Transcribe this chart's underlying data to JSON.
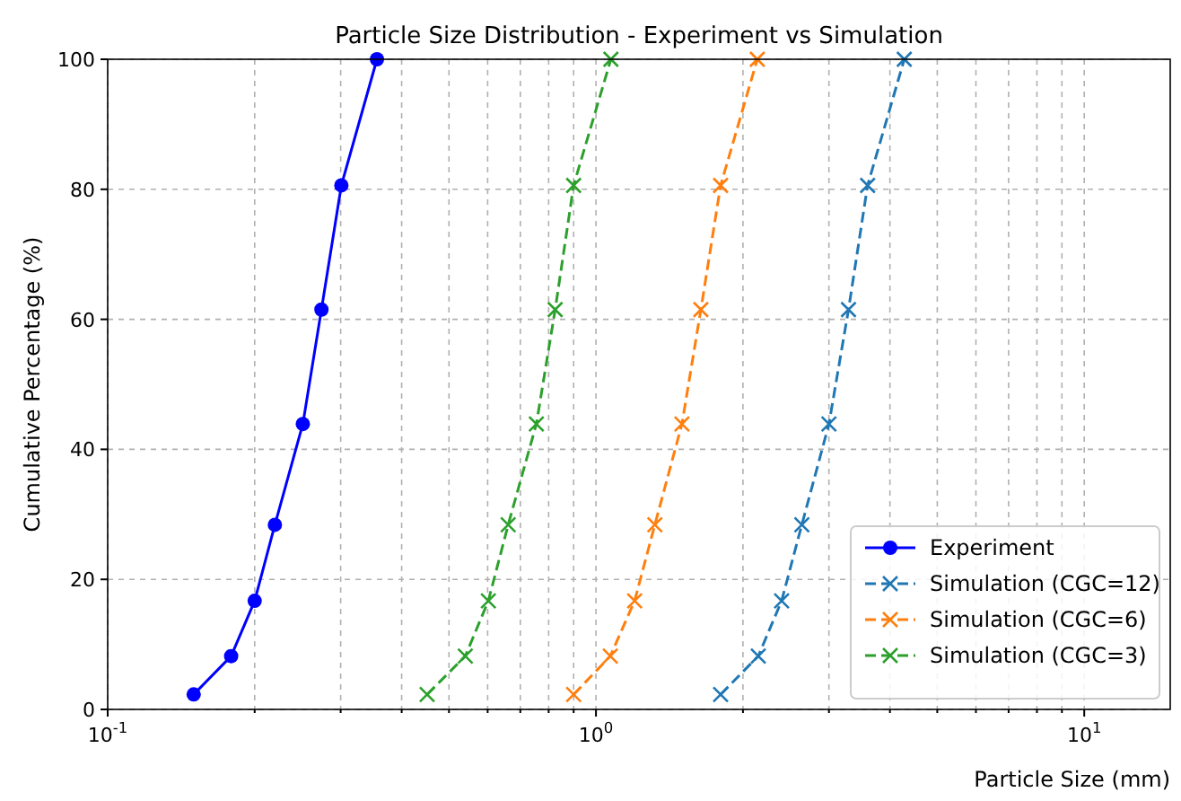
{
  "chart_data": {
    "type": "line",
    "title": "Particle Size Distribution - Experiment vs Simulation",
    "xlabel": "Particle Size (mm)",
    "ylabel": "Cumulative Percentage (%)",
    "log": "x",
    "xlim": [
      0.1,
      15
    ],
    "xticks": [
      {
        "value": 0.1,
        "label": "10$^{-1}$"
      },
      {
        "value": 0.2,
        "label": null
      },
      {
        "value": 0.3,
        "label": null
      },
      {
        "value": 0.4,
        "label": null
      },
      {
        "value": 0.5,
        "label": null
      },
      {
        "value": 0.6,
        "label": null
      },
      {
        "value": 0.7,
        "label": null
      },
      {
        "value": 0.8,
        "label": null
      },
      {
        "value": 0.9,
        "label": null
      },
      {
        "value": 1,
        "label": "10$^{0}$"
      },
      {
        "value": 2,
        "label": null
      },
      {
        "value": 3,
        "label": null
      },
      {
        "value": 4,
        "label": null
      },
      {
        "value": 5,
        "label": null
      },
      {
        "value": 6,
        "label": null
      },
      {
        "value": 7,
        "label": null
      },
      {
        "value": 8,
        "label": null
      },
      {
        "value": 9,
        "label": null
      },
      {
        "value": 10,
        "label": "10$^{1}$"
      }
    ],
    "ylim": [
      0,
      100
    ],
    "yticks": [
      0,
      20,
      40,
      60,
      80,
      100
    ],
    "grid": true,
    "legend": "bottom right",
    "series": [
      {
        "name": "Experiment",
        "color": "#0000ff",
        "marker": "circle",
        "line_style": "solid",
        "x": [
          0.15,
          0.179,
          0.2,
          0.22,
          0.251,
          0.274,
          0.301,
          0.356
        ],
        "values": [
          2.3,
          8.2,
          16.7,
          28.4,
          43.9,
          61.5,
          80.6,
          100
        ]
      },
      {
        "name": "Simulation (CGC=12)",
        "color": "#1f77b4",
        "marker": "cross",
        "line_style": "dashed",
        "x": [
          1.8,
          2.15,
          2.4,
          2.64,
          3.0,
          3.29,
          3.6,
          4.28
        ],
        "values": [
          2.3,
          8.2,
          16.7,
          28.4,
          43.9,
          61.5,
          80.6,
          100
        ]
      },
      {
        "name": "Simulation (CGC=6)",
        "color": "#ff7f0e",
        "marker": "cross",
        "line_style": "dashed",
        "x": [
          0.9,
          1.07,
          1.2,
          1.32,
          1.5,
          1.64,
          1.8,
          2.14
        ],
        "values": [
          2.3,
          8.2,
          16.7,
          28.4,
          43.9,
          61.5,
          80.6,
          100
        ]
      },
      {
        "name": "Simulation (CGC=3)",
        "color": "#2ca02c",
        "marker": "cross",
        "line_style": "dashed",
        "x": [
          0.451,
          0.54,
          0.602,
          0.661,
          0.755,
          0.825,
          0.9,
          1.073
        ],
        "values": [
          2.3,
          8.2,
          16.7,
          28.4,
          43.9,
          61.5,
          80.6,
          100
        ]
      }
    ]
  }
}
